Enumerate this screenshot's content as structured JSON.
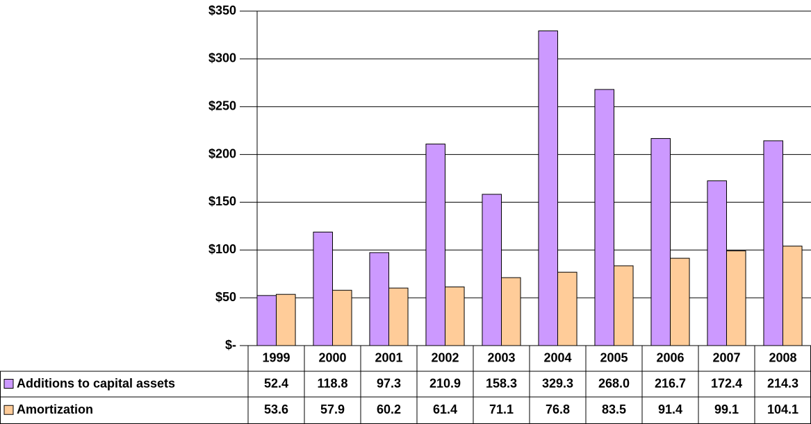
{
  "chart_data": {
    "type": "bar",
    "categories": [
      "1999",
      "2000",
      "2001",
      "2002",
      "2003",
      "2004",
      "2005",
      "2006",
      "2007",
      "2008"
    ],
    "series": [
      {
        "name": "Additions to capital assets",
        "color": "#cc99ff",
        "values": [
          52.4,
          118.8,
          97.3,
          210.9,
          158.3,
          329.3,
          268.0,
          216.7,
          172.4,
          214.3
        ],
        "value_labels": [
          "52.4",
          "118.8",
          "97.3",
          "210.9",
          "158.3",
          "329.3",
          "268.0",
          "216.7",
          "172.4",
          "214.3"
        ]
      },
      {
        "name": "Amortization",
        "color": "#ffcc99",
        "values": [
          53.6,
          57.9,
          60.2,
          61.4,
          71.1,
          76.8,
          83.5,
          91.4,
          99.1,
          104.1
        ],
        "value_labels": [
          "53.6",
          "57.9",
          "60.2",
          "61.4",
          "71.1",
          "76.8",
          "83.5",
          "91.4",
          "99.1",
          "104.1"
        ]
      }
    ],
    "ylim": [
      0,
      350
    ],
    "yticks": [
      {
        "value": 0,
        "label": "$-"
      },
      {
        "value": 50,
        "label": "$50"
      },
      {
        "value": 100,
        "label": "$100"
      },
      {
        "value": 150,
        "label": "$150"
      },
      {
        "value": 200,
        "label": "$200"
      },
      {
        "value": 250,
        "label": "$250"
      },
      {
        "value": 300,
        "label": "$300"
      },
      {
        "value": 350,
        "label": "$350"
      }
    ],
    "grid": true
  }
}
